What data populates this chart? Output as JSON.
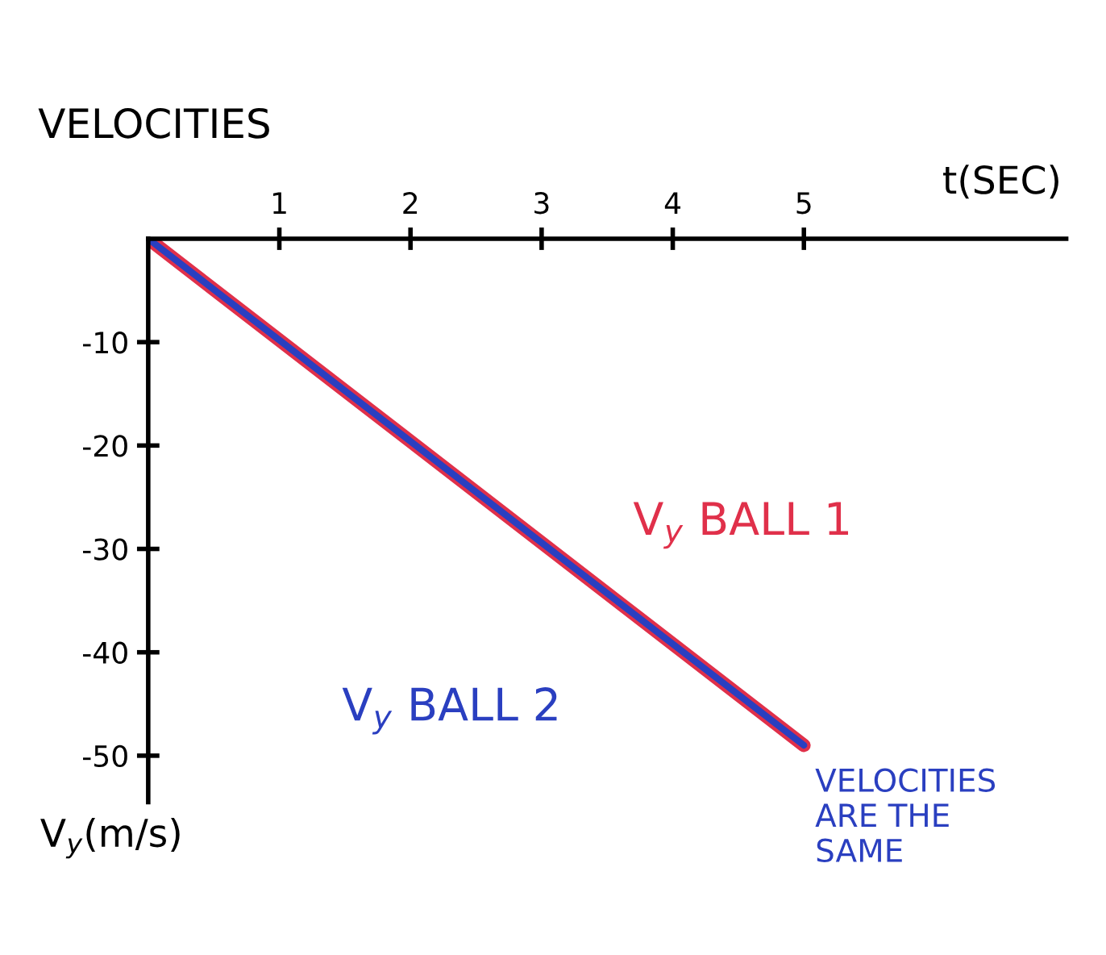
{
  "chart_data": {
    "type": "line",
    "title": "VELOCITIES",
    "xlabel": "t(SEC)",
    "ylabel": "V$_{y}$(m/s)",
    "x": [
      0,
      5
    ],
    "series": [
      {
        "name": "V$_{y}$ BALL 1",
        "color": "#e0304a",
        "values": [
          0,
          -49
        ]
      },
      {
        "name": "V$_{y}$ BALL 2",
        "color": "#2a3fc0",
        "values": [
          0,
          -49
        ]
      }
    ],
    "xlim": [
      0,
      7
    ],
    "ylim": [
      -54.5,
      0
    ],
    "xticks": [
      1,
      2,
      3,
      4,
      5
    ],
    "yticks": [
      -10,
      -20,
      -30,
      -40,
      -50
    ],
    "annotations": [
      {
        "text": "VELOCITIES\nARE THE\nSAME",
        "x": 5,
        "y": -49
      }
    ],
    "grid": false,
    "legend": false,
    "marker": "none",
    "line_style": "solid"
  }
}
